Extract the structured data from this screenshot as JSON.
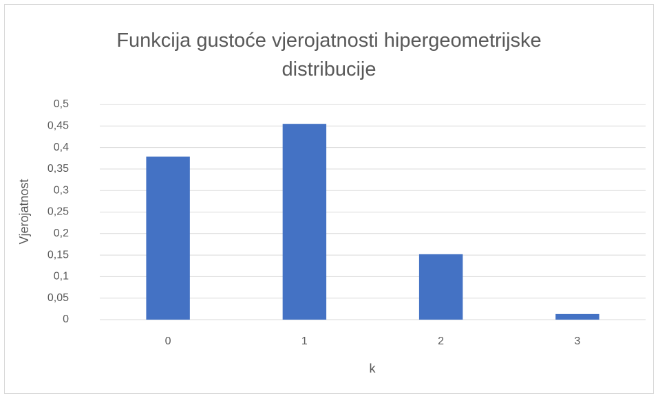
{
  "chart_data": {
    "type": "bar",
    "title": "Funkcija gustoće vjerojatnosti hipergeometrijske distribucije",
    "x_label": "k",
    "y_label": "Vjerojatnost",
    "categories": [
      "0",
      "1",
      "2",
      "3"
    ],
    "values": [
      0.379,
      0.455,
      0.152,
      0.013
    ],
    "color": "#4472c4",
    "ylim": [
      0,
      0.5
    ],
    "yticks": [
      0,
      {
        "value": 0.05,
        "label": "0,05"
      },
      {
        "value": 0.1,
        "label": "0,1"
      },
      {
        "value": 0.15,
        "label": "0,15"
      },
      {
        "value": 0.2,
        "label": "0,2"
      },
      {
        "value": 0.25,
        "label": "0,25"
      },
      {
        "value": 0.3,
        "label": "0,3"
      },
      {
        "value": 0.35,
        "label": "0,35"
      },
      {
        "value": 0.4,
        "label": "0,4"
      },
      {
        "value": 0.45,
        "label": "0,45"
      },
      {
        "value": 0.5,
        "label": "0,5"
      }
    ],
    "grid": true
  }
}
